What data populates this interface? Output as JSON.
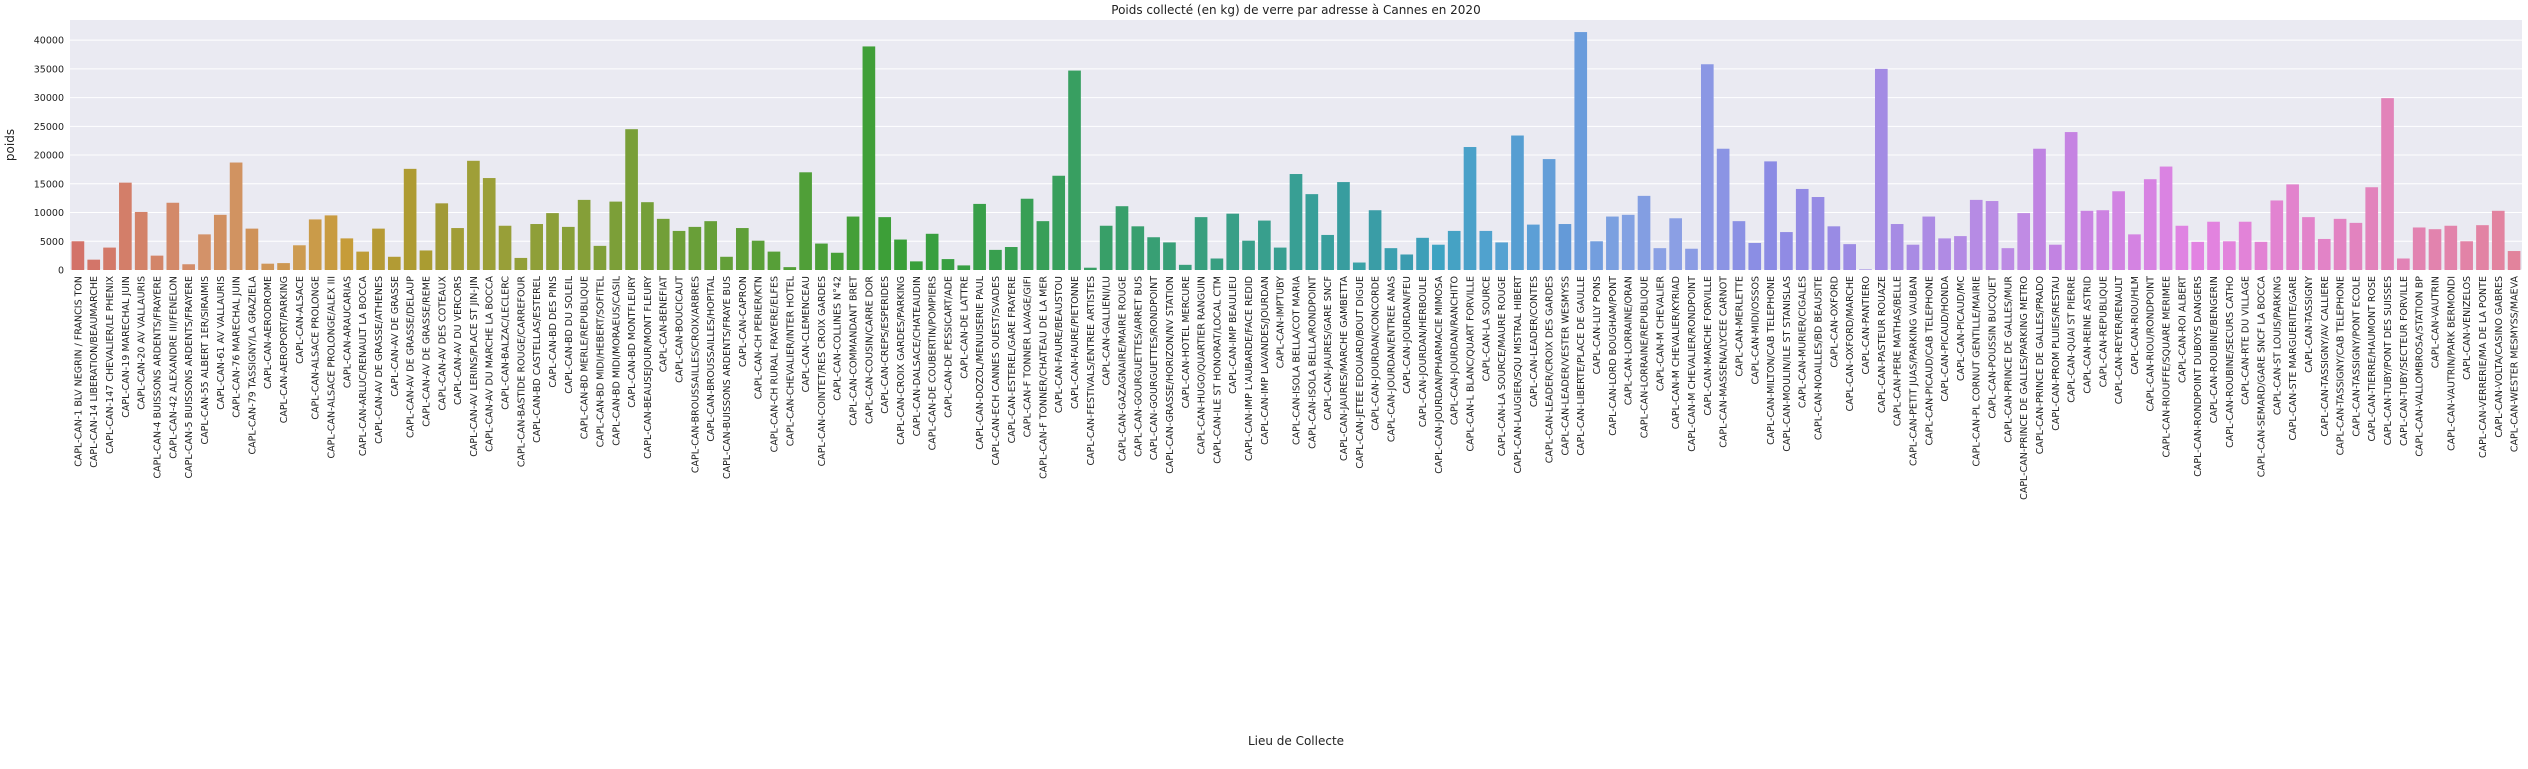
{
  "chart_data": {
    "type": "bar",
    "title": "Poids collecté (en kg) de verre par adresse à Cannes en 2020",
    "x_label": "Lieu de Collecte",
    "y_label": "poids",
    "categories": [
      "CAPL-CAN-1 BLV NEGRIN / FRANCIS TON",
      "CAPL-CAN-14 LIBERATION/BEAUMARCHE",
      "CAPL-CAN-147 CHEVALIER/LE PHENIX",
      "CAPL-CAN-19 MARECHAL JUIN",
      "CAPL-CAN-20 AV VALLAURIS",
      "CAPL-CAN-4 BUISSONS ARDENTS/FRAYERE",
      "CAPL-CAN-42 ALEXANDRE III/FENELON",
      "CAPL-CAN-5 BUISSONS ARDENTS/FRAYERE",
      "CAPL-CAN-55 ALBERT 1ER/SIRAIMIS",
      "CAPL-CAN-61 AV VALLAURIS",
      "CAPL-CAN-76 MARECHAL JUIN",
      "CAPL-CAN-79 TASSIGNY/LA GRAZIELA",
      "CAPL-CAN-AERODROME",
      "CAPL-CAN-AEROPORT/PARKING",
      "CAPL-CAN-ALSACE",
      "CAPL-CAN-ALSACE PROLONGE",
      "CAPL-CAN-ALSACE PROLONGE/ALEX III",
      "CAPL-CAN-ARAUCARIAS",
      "CAPL-CAN-ARLUC/RENAULT LA BOCCA",
      "CAPL-CAN-AV DE GRASSE/ATHENES",
      "CAPL-CAN-AV DE GRASSE",
      "CAPL-CAN-AV DE GRASSE/DELAUP",
      "CAPL-CAN-AV DE GRASSE/REME",
      "CAPL-CAN-AV DES COTEAUX",
      "CAPL-CAN-AV DU VERCORS",
      "CAPL-CAN-AV LERINS/PLACE ST JIN-JIN",
      "CAPL-CAN-AV DU MARCHE LA BOCCA",
      "CAPL-CAN-BALZAC/LECLERC",
      "CAPL-CAN-BASTIDE ROUGE/CARREFOUR",
      "CAPL-CAN-BD CASTELLAS/ESTEREL",
      "CAPL-CAN-BD DES PINS",
      "CAPL-CAN-BD DU SOLEIL",
      "CAPL-CAN-BD MERLE/REPUBLIQUE",
      "CAPL-CAN-BD MIDI/HEBERT/SOFITEL",
      "CAPL-CAN-BD MIDI/MORAEUS/CASIL",
      "CAPL-CAN-BD MONTFLEURY",
      "CAPL-CAN-BEAUSEJOUR/MONT FLEURY",
      "CAPL-CAN-BENEFIAT",
      "CAPL-CAN-BOUCICAUT",
      "CAPL-CAN-BROUSSAILLES/CROIX/ARBRES",
      "CAPL-CAN-BROUSSAILLES/HOPITAL",
      "CAPL-CAN-BUISSONS ARDENTS/FRAYE BUS",
      "CAPL-CAN-CAPRON",
      "CAPL-CAN-CH PERIER/KTN",
      "CAPL-CAN-CH RURAL FRAYERE/ELFES",
      "CAPL-CAN-CHEVALIER/INTER HOTEL",
      "CAPL-CAN-CLEMENCEAU",
      "CAPL-CAN-COINTET/RES CROIX GARDES",
      "CAPL-CAN-COLLINES N°42",
      "CAPL-CAN-COMMANDANT BRET",
      "CAPL-CAN-COUSIN/CARRE DOR",
      "CAPL-CAN-CREPS/ESPERIDES",
      "CAPL-CAN-CROIX GARDES/PARKING",
      "CAPL-CAN-DALSACE/CHATEAUDIN",
      "CAPL-CAN-DE COUBERTIN/POMPIERS",
      "CAPL-CAN-DE PESSICART/ADE",
      "CAPL-CAN-DE LATTRE",
      "CAPL-CAN-DOZOL/MENUISERIE PAUL",
      "CAPL-CAN-ECH CANNES OUEST/SVADES",
      "CAPL-CAN-ESTEREL/GARE FRAYERE",
      "CAPL-CAN-F TONNER LAVAGE/GIFI",
      "CAPL-CAN-F TONNER/CHATEAU DE LA MER",
      "CAPL-CAN-FAURE/BEAUSTOU",
      "CAPL-CAN-FAURE/PIETONNE",
      "CAPL-CAN-FESTIVALS/ENTREE ARTISTES",
      "CAPL-CAN-GALLIENI/LU",
      "CAPL-CAN-GAZAGNAIRE/MAIRE ROUGE",
      "CAPL-CAN-GOURGUETTES/ARRET BUS",
      "CAPL-CAN-GOURGUETTES/RONDPOINT",
      "CAPL-CAN-GRASSE/HORIZON/NV STATION",
      "CAPL-CAN-HOTEL MERCURE",
      "CAPL-CAN-HUGO/QUARTIER RANGUIN",
      "CAPL-CAN-ILE ST HONORAT/LOCAL CTM",
      "CAPL-CAN-IMP BEAULIEU",
      "CAPL-CAN-IMP L'AUBARDE/FACE REDID",
      "CAPL-CAN-IMP LAVANDES/JOURDAN",
      "CAPL-CAN-IMPTUBY",
      "CAPL-CAN-ISOLA BELLA/COT MARIA",
      "CAPL-CAN-ISOLA BELLA/RONDPOINT",
      "CAPL-CAN-JAURES/GARE SNCF",
      "CAPL-CAN-JAURES/MARCHE GAMBETTA",
      "CAPL-CAN-JETEE EDOUARD/BOUT DIGUE",
      "CAPL-CAN-JOURDAN/CONCORDE",
      "CAPL-CAN-JOURDAN/ENTREE ANAS",
      "CAPL-CAN-JOURDAN/FEU",
      "CAPL-CAN-JOURDAN/HERBOULE",
      "CAPL-CAN-JOURDAN/PHARMACIE MIMOSA",
      "CAPL-CAN-JOURDAN/RANCHITO",
      "CAPL-CAN-L BLANC/QUART FORVILLE",
      "CAPL-CAN-LA SOURCE",
      "CAPL-CAN-LA SOURCE/MAURE ROUGE",
      "CAPL-CAN-LAUGIER/SQU MISTRAL HIBERT",
      "CAPL-CAN-LEADER/CONTES",
      "CAPL-CAN-LEADER/CROIX DES GARDES",
      "CAPL-CAN-LEADER/VESTER WESMYSS",
      "CAPL-CAN-LIBERTE/PLACE DE GAULLE",
      "CAPL-CAN-LILY PONS",
      "CAPL-CAN-LORD BOUGHAM/PONT",
      "CAPL-CAN-LORRAINE/ORAN",
      "CAPL-CAN-LORRAINE/REPUBLIQUE",
      "CAPL-CAN-M CHEVALIER",
      "CAPL-CAN-M CHEVALIER/KYRIAD",
      "CAPL-CAN-M CHEVALIER/RONDPOINT",
      "CAPL-CAN-MARCHE FORVILLE",
      "CAPL-CAN-MASSENA/LYCEE CARNOT",
      "CAPL-CAN-MERLETTE",
      "CAPL-CAN-MIDI/OSSOS",
      "CAPL-CAN-MILTON/CAB TELEPHONE",
      "CAPL-CAN-MOULIN/ILE ST STANISLAS",
      "CAPL-CAN-MURIER/CIGALES",
      "CAPL-CAN-NOAILLES/BD BEAUSITE",
      "CAPL-CAN-OXFORD",
      "CAPL-CAN-OXFORD/MARCHE",
      "CAPL-CAN-PANTIERO",
      "CAPL-CAN-PASTEUR ROUAZE",
      "CAPL-CAN-PERE MATHAS/BELLE",
      "CAPL-CAN-PETIT JUAS/PARKING VAUBAN",
      "CAPL-CAN-PICAUD/CAB TELEPHONE",
      "CAPL-CAN-PICAUD/HONDA",
      "CAPL-CAN-PICAUD/MC",
      "CAPL-CAN-PL CORNUT GENTILLE/MAIRIE",
      "CAPL-CAN-POUSSIN BUCQUET",
      "CAPL-CAN-PRINCE DE GALLES/MUR",
      "CAPL-CAN-PRINCE DE GALLES/PARKING METRO",
      "CAPL-CAN-PRINCE DE GALLES/PRADO",
      "CAPL-CAN-PROM PLUIES/RESTAU",
      "CAPL-CAN-QUAI ST PIERRE",
      "CAPL-CAN-REINE ASTRID",
      "CAPL-CAN-REPUBLIQUE",
      "CAPL-CAN-REYER/RENAULT",
      "CAPL-CAN-RIOU/HLM",
      "CAPL-CAN-RIOU/RONDPOINT",
      "CAPL-CAN-RIOUFFE/SQUARE MERIMEE",
      "CAPL-CAN-ROI ALBERT",
      "CAPL-CAN-RONDPOINT DUBOYS DANGERS",
      "CAPL-CAN-ROUBINE/BENGERIN",
      "CAPL-CAN-ROUBINE/SECURS CATHO",
      "CAPL-CAN-RTE DU VILLAGE",
      "CAPL-CAN-SEMARD/GARE SNCF LA BOCCA",
      "CAPL-CAN-ST LOUIS/PARKING",
      "CAPL-CAN-STE MARGUERITE/GARE",
      "CAPL-CAN-TASSIGNY",
      "CAPL-CAN-TASSIGNY/AV CALLIERE",
      "CAPL-CAN-TASSIGNY/CAB TELEPHONE",
      "CAPL-CAN-TASSIGNY/PONT ECOLE",
      "CAPL-CAN-TIERRE/HAUMONT ROSE",
      "CAPL-CAN-TUBY/PONT DES SUISSES",
      "CAPL-CAN-TUBY/SECTEUR FORVILLE",
      "CAPL-CAN-VALLOMBROSA/STATION BP",
      "CAPL-CAN-VAUTRIN",
      "CAPL-CAN-VAUTRIN/PARK BERMONDI",
      "CAPL-CAN-VENIZELOS",
      "CAPL-CAN-VERRERIE/MA DE LA PONTE",
      "CAPL-CAN-VOLTA/CASINO GABRES",
      "CAPL-CAN-WESTER MESMYSS/MAEVA"
    ],
    "values": [
      5000,
      1800,
      3900,
      15200,
      10100,
      2500,
      11700,
      1000,
      6200,
      9600,
      18700,
      7200,
      1100,
      1200,
      4300,
      8800,
      9500,
      5500,
      3200,
      7200,
      2300,
      17600,
      3400,
      11600,
      7300,
      19000,
      16000,
      7700,
      2100,
      8000,
      9900,
      7500,
      12200,
      4200,
      11900,
      24500,
      11800,
      8900,
      6800,
      7500,
      8500,
      2300,
      7300,
      5100,
      3200,
      500,
      17000,
      4600,
      3000,
      9300,
      38900,
      9200,
      5300,
      1500,
      6300,
      1900,
      800,
      11500,
      3500,
      4000,
      12400,
      8500,
      16400,
      34700,
      400,
      7700,
      11100,
      7600,
      5700,
      4800,
      900,
      9200,
      2000,
      9800,
      5100,
      8600,
      3900,
      16700,
      13200,
      6100,
      15300,
      1300,
      10400,
      3800,
      2700,
      5600,
      4400,
      6800,
      21400,
      6800,
      4800,
      23400,
      7900,
      19300,
      8000,
      41400,
      5000,
      9300,
      9600,
      12900,
      3800,
      9000,
      3700,
      35800,
      21100,
      8500,
      4700,
      18900,
      6600,
      14100,
      12700,
      7600,
      4500,
      100,
      35000,
      8000,
      4400,
      9300,
      5500,
      5900,
      12200,
      12000,
      3800,
      9900,
      21100,
      4400,
      24000,
      10300,
      10400,
      13700,
      6200,
      15800,
      18000,
      7700,
      4900,
      8400,
      5000,
      8400,
      4900,
      12100,
      14900,
      9200,
      5400,
      8900,
      8200,
      14400,
      29900,
      2000,
      7400,
      7100,
      7700,
      5000,
      7800,
      10300,
      3300
    ],
    "colors": [
      "hsl(5,55%,62%)",
      "hsl(7,55%,62%)",
      "hsl(9,55%,62%)",
      "hsl(12,55%,62%)",
      "hsl(14,55%,62%)",
      "hsl(16,55%,62%)",
      "hsl(18,55%,62%)",
      "hsl(20,55%,62%)",
      "hsl(23,55%,62%)",
      "hsl(25,55%,60%)",
      "hsl(27,55%,60%)",
      "hsl(29,55%,58%)",
      "hsl(31,55%,58%)",
      "hsl(34,55%,56%)",
      "hsl(36,55%,56%)",
      "hsl(38,55%,54%)",
      "hsl(40,55%,52%)",
      "hsl(42,55%,50%)",
      "hsl(45,55%,48%)",
      "hsl(47,55%,46%)",
      "hsl(49,55%,45%)",
      "hsl(51,55%,44%)",
      "hsl(53,55%,43%)",
      "hsl(56,50%,42%)",
      "hsl(58,50%,42%)",
      "hsl(60,48%,42%)",
      "hsl(62,48%,42%)",
      "hsl(64,48%,42%)",
      "hsl(67,48%,42%)",
      "hsl(69,48%,42%)",
      "hsl(71,48%,42%)",
      "hsl(73,48%,42%)",
      "hsl(75,48%,42%)",
      "hsl(78,48%,42%)",
      "hsl(80,48%,42%)",
      "hsl(82,48%,42%)",
      "hsl(84,48%,42%)",
      "hsl(86,48%,42%)",
      "hsl(89,48%,42%)",
      "hsl(91,48%,42%)",
      "hsl(93,48%,42%)",
      "hsl(95,48%,42%)",
      "hsl(97,48%,42%)",
      "hsl(100,48%,42%)",
      "hsl(102,48%,42%)",
      "hsl(104,48%,42%)",
      "hsl(106,48%,42%)",
      "hsl(108,48%,42%)",
      "hsl(111,48%,42%)",
      "hsl(113,48%,42%)",
      "hsl(115,48%,42%)",
      "hsl(117,48%,42%)",
      "hsl(119,48%,42%)",
      "hsl(122,48%,42%)",
      "hsl(124,48%,42%)",
      "hsl(126,48%,42%)",
      "hsl(128,48%,42%)",
      "hsl(130,48%,42%)",
      "hsl(133,48%,42%)",
      "hsl(135,48%,42%)",
      "hsl(137,48%,42%)",
      "hsl(139,48%,42%)",
      "hsl(141,48%,42%)",
      "hsl(144,48%,42%)",
      "hsl(146,48%,42%)",
      "hsl(148,48%,42%)",
      "hsl(150,48%,42%)",
      "hsl(152,48%,42%)",
      "hsl(155,48%,42%)",
      "hsl(157,48%,42%)",
      "hsl(159,48%,42%)",
      "hsl(161,48%,42%)",
      "hsl(163,48%,42%)",
      "hsl(166,48%,42%)",
      "hsl(168,48%,42%)",
      "hsl(170,48%,42%)",
      "hsl(172,48%,42%)",
      "hsl(174,48%,42%)",
      "hsl(177,48%,42%)",
      "hsl(179,48%,42%)",
      "hsl(181,48%,42%)",
      "hsl(183,48%,44%)",
      "hsl(185,48%,44%)",
      "hsl(188,50%,46%)",
      "hsl(190,50%,46%)",
      "hsl(192,50%,48%)",
      "hsl(194,52%,50%)",
      "hsl(196,52%,52%)",
      "hsl(199,54%,54%)",
      "hsl(201,56%,56%)",
      "hsl(203,58%,58%)",
      "hsl(205,58%,58%)",
      "hsl(207,60%,60%)",
      "hsl(210,60%,62%)",
      "hsl(212,60%,62%)",
      "hsl(214,62%,64%)",
      "hsl(216,62%,66%)",
      "hsl(218,62%,68%)",
      "hsl(221,62%,70%)",
      "hsl(223,62%,70%)",
      "hsl(225,62%,72%)",
      "hsl(227,62%,72%)",
      "hsl(229,62%,72%)",
      "hsl(232,62%,72%)",
      "hsl(234,62%,72%)",
      "hsl(236,62%,72%)",
      "hsl(238,62%,72%)",
      "hsl(240,62%,72%)",
      "hsl(243,62%,72%)",
      "hsl(245,62%,72%)",
      "hsl(247,62%,72%)",
      "hsl(249,62%,72%)",
      "hsl(251,62%,72%)",
      "hsl(254,62%,72%)",
      "hsl(256,62%,72%)",
      "hsl(258,62%,72%)",
      "hsl(260,62%,72%)",
      "hsl(262,62%,72%)",
      "hsl(265,62%,72%)",
      "hsl(267,62%,72%)",
      "hsl(269,62%,72%)",
      "hsl(271,62%,72%)",
      "hsl(273,62%,72%)",
      "hsl(276,62%,72%)",
      "hsl(278,62%,70%)",
      "hsl(280,62%,70%)",
      "hsl(282,62%,70%)",
      "hsl(284,62%,70%)",
      "hsl(287,62%,70%)",
      "hsl(289,62%,70%)",
      "hsl(291,62%,70%)",
      "hsl(293,62%,70%)",
      "hsl(295,62%,70%)",
      "hsl(298,62%,70%)",
      "hsl(300,62%,70%)",
      "hsl(302,62%,70%)",
      "hsl(304,62%,70%)",
      "hsl(306,62%,70%)",
      "hsl(309,62%,70%)",
      "hsl(311,62%,70%)",
      "hsl(313,62%,70%)",
      "hsl(315,62%,70%)",
      "hsl(317,62%,70%)",
      "hsl(320,62%,70%)",
      "hsl(322,62%,70%)",
      "hsl(324,62%,70%)",
      "hsl(326,62%,70%)",
      "hsl(328,62%,70%)",
      "hsl(331,62%,70%)",
      "hsl(333,62%,70%)",
      "hsl(335,62%,70%)",
      "hsl(337,62%,70%)",
      "hsl(339,62%,70%)",
      "hsl(342,62%,70%)",
      "hsl(344,62%,70%)"
    ],
    "ylim": [
      0,
      43500
    ],
    "yticks": [
      0,
      5000,
      10000,
      15000,
      20000,
      25000,
      30000,
      35000,
      40000
    ],
    "grid": true
  }
}
